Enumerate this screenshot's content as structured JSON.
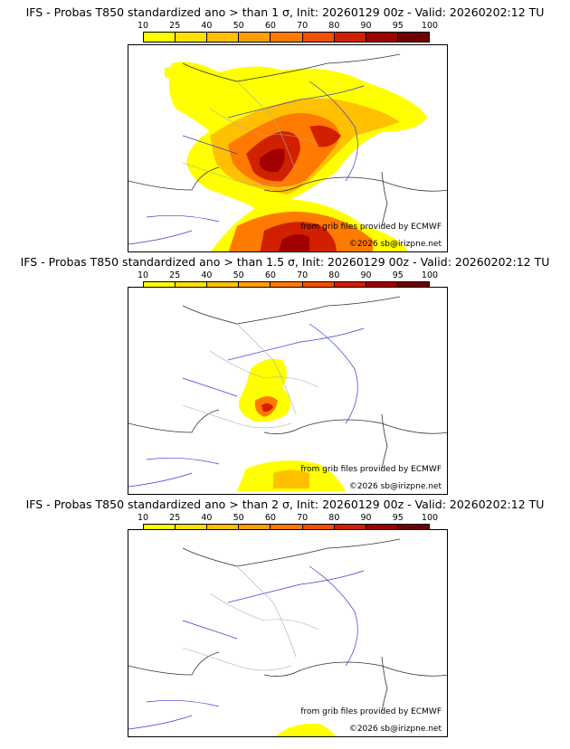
{
  "colorbar": {
    "ticks": [
      "10",
      "25",
      "40",
      "50",
      "60",
      "70",
      "80",
      "90",
      "95",
      "100"
    ],
    "colors": [
      "#ffff00",
      "#ffe000",
      "#ffc000",
      "#ffa000",
      "#ff7a00",
      "#f05000",
      "#d02000",
      "#a00000",
      "#700000"
    ]
  },
  "panels": [
    {
      "title": "IFS - Probas T850  standardized ano > than 1 σ, Init: 20260129 00z - Valid: 20260202:12 TU",
      "source": "from grib files provided by ECMWF",
      "copyright": "©2026 sb@irizpne.net"
    },
    {
      "title": "IFS - Probas T850  standardized ano > than 1.5 σ, Init: 20260129 00z - Valid: 20260202:12 TU",
      "source": "from grib files provided by ECMWF",
      "copyright": "©2026 sb@irizpne.net"
    },
    {
      "title": "IFS - Probas T850  standardized ano > than 2 σ, Init: 20260129 00z - Valid: 20260202:12 TU",
      "source": "from grib files provided by ECMWF",
      "copyright": "©2026 sb@irizpne.net"
    }
  ]
}
